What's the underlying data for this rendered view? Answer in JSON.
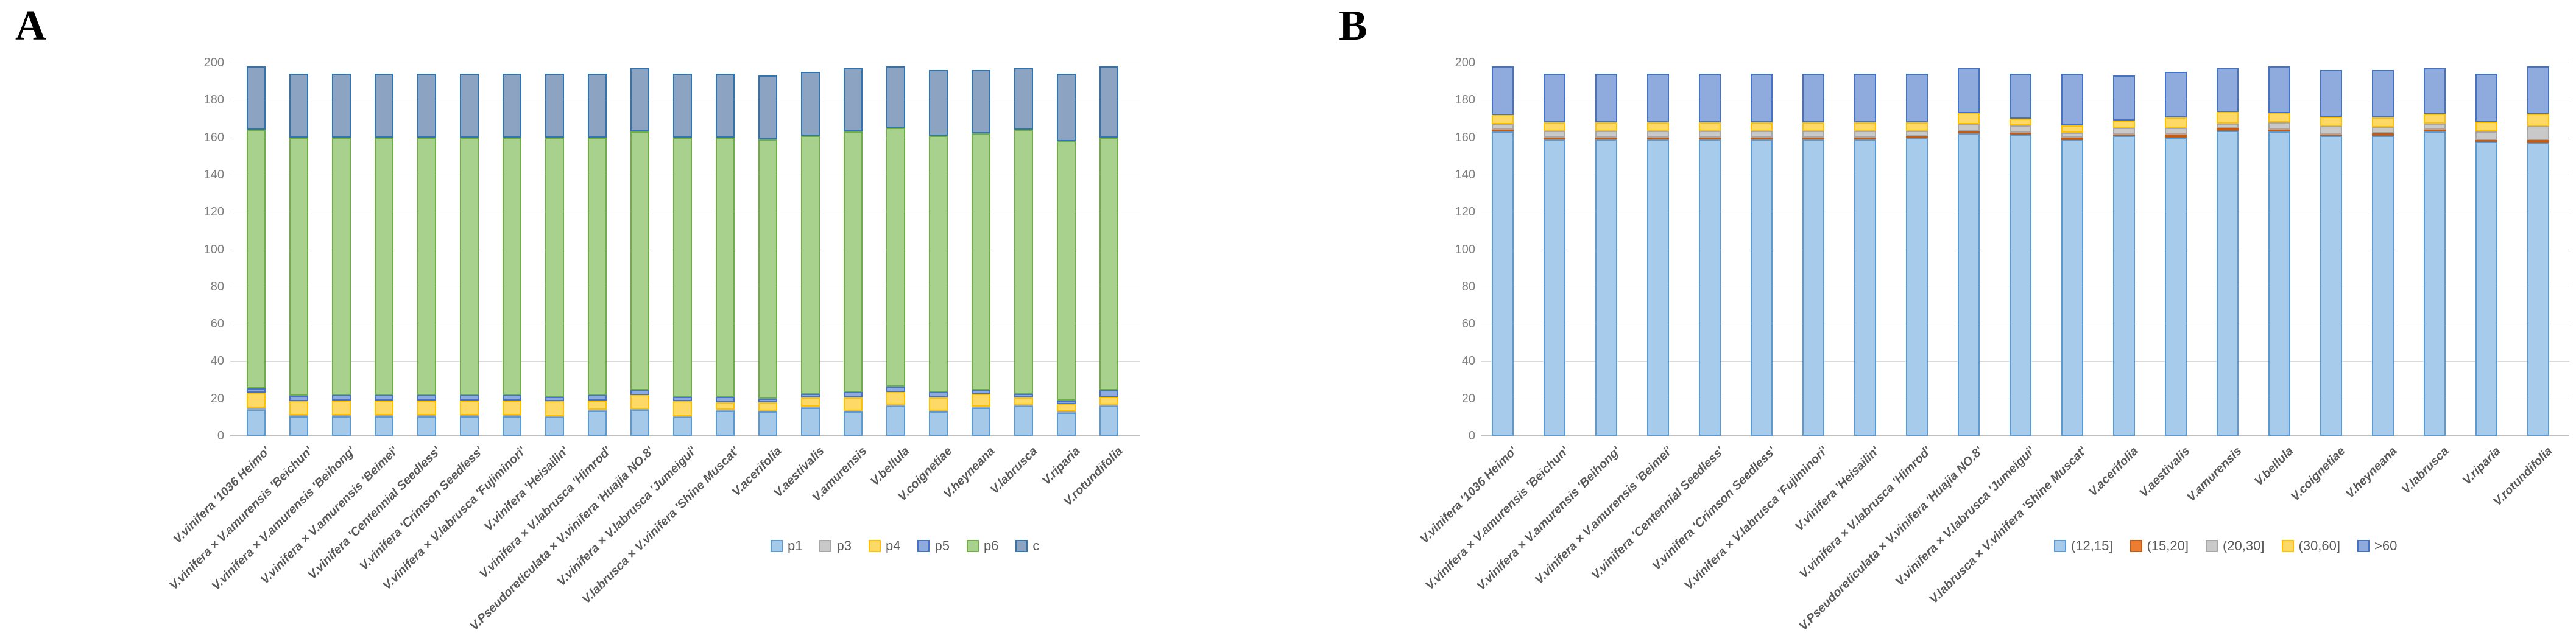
{
  "figure": {
    "panels": [
      {
        "letter": "A"
      },
      {
        "letter": "B"
      }
    ]
  },
  "axis": {
    "y_ticks": [
      0,
      20,
      40,
      60,
      80,
      100,
      120,
      140,
      160,
      180,
      200
    ],
    "ylim": [
      0,
      200
    ]
  },
  "chart_data": [
    {
      "type": "bar",
      "stacked": true,
      "title": "",
      "xlabel": "",
      "ylabel": "",
      "ylim": [
        0,
        200
      ],
      "ytick_step": 20,
      "grid": true,
      "legend_position": "bottom",
      "categories": [
        "V.vinifera '1036 Heimo'",
        "V.vinifera × V.amurensis 'Beichun'",
        "V.vinifera × V.amurensis 'Beihong'",
        "V.vinifera × V.amurensis 'Beimei'",
        "V.vinifera 'Centennial Seedless'",
        "V.vinifera 'Crimson Seedless'",
        "V.vinifera × V.labrusca 'Fujiminori'",
        "V.vinifera 'Heisailin'",
        "V.vinifera × V.labrusca 'Himrod'",
        "V.Pseudoreticulata × V.vinifera 'Huajia NO.8'",
        "V.vinifera × V.labrusca 'Jumeigui'",
        "V.labrusca × V.vinifera 'Shine Muscat'",
        "V.acerifolia",
        "V.aestivalis",
        "V.amurensis",
        "V.bellula",
        "V.coignetiae",
        "V.heyneana",
        "V.labrusca",
        "V.riparia",
        "V.rotundifolia"
      ],
      "series": [
        {
          "name": "p1",
          "fill": "#A4C9E9",
          "border": "#5B9BD5",
          "values": [
            14,
            10.5,
            10.5,
            10.5,
            10.5,
            10.5,
            10.5,
            10,
            13.5,
            14,
            10,
            13.5,
            13,
            15,
            13,
            16,
            13,
            15,
            16,
            12.5,
            16
          ]
        },
        {
          "name": "p3",
          "fill": "#C9C9C9",
          "border": "#A6A6A6",
          "values": [
            1,
            0.5,
            0.5,
            0.5,
            0.5,
            0.5,
            0.5,
            0.5,
            0.5,
            0.5,
            0.5,
            0.5,
            0.5,
            0.5,
            0.5,
            0.5,
            0.5,
            0.5,
            0.5,
            0.5,
            0.5
          ]
        },
        {
          "name": "p4",
          "fill": "#FFD966",
          "border": "#FFC000",
          "values": [
            8,
            7.5,
            8,
            8,
            8,
            8,
            8,
            8,
            5,
            7.5,
            8,
            4,
            4.5,
            5,
            7,
            7,
            7,
            7,
            4,
            4,
            4.5
          ]
        },
        {
          "name": "p5",
          "fill": "#8FAADC",
          "border": "#4472C4",
          "values": [
            2.5,
            3,
            3,
            3,
            3,
            3,
            3,
            2.5,
            3,
            2.5,
            2.5,
            3,
            2,
            2,
            3,
            3,
            3,
            2,
            2,
            2,
            3.5
          ]
        },
        {
          "name": "p6",
          "fill": "#A9D18E",
          "border": "#70AD47",
          "values": [
            138.5,
            138.5,
            138,
            138,
            138,
            138,
            138,
            139,
            138,
            138.5,
            139,
            139,
            139,
            138.5,
            139.5,
            138.5,
            137.5,
            137.5,
            141.5,
            139,
            135.5
          ]
        },
        {
          "name": "c",
          "fill": "#8DA3C2",
          "border": "#2E75B6",
          "values": [
            34,
            34,
            34,
            34,
            34,
            34,
            34,
            34,
            34,
            34,
            34,
            34,
            34,
            34,
            34,
            33,
            35,
            34,
            33,
            36,
            38
          ]
        }
      ]
    },
    {
      "type": "bar",
      "stacked": true,
      "title": "",
      "xlabel": "",
      "ylabel": "",
      "ylim": [
        0,
        200
      ],
      "ytick_step": 20,
      "grid": true,
      "legend_position": "bottom",
      "categories": [
        "V.vinifera '1036 Heimo'",
        "V.vinifera × V.amurensis 'Beichun'",
        "V.vinifera × V.amurensis 'Beihong'",
        "V.vinifera × V.amurensis 'Beimei'",
        "V.vinifera 'Centennial Seedless'",
        "V.vinifera 'Crimson Seedless'",
        "V.vinifera × V.labrusca 'Fujiminori'",
        "V.vinifera 'Heisailin'",
        "V.vinifera × V.labrusca 'Himrod'",
        "V.Pseudoreticulata × V.vinifera 'Huajia NO.8'",
        "V.vinifera × V.labrusca 'Jumeigui'",
        "V.labrusca × V.vinifera 'Shine Muscat'",
        "V.acerifolia",
        "V.aestivalis",
        "V.amurensis",
        "V.bellula",
        "V.coignetiae",
        "V.heyneana",
        "V.labrusca",
        "V.riparia",
        "V.rotundifolia"
      ],
      "series": [
        {
          "name": "(12,15]",
          "fill": "#A6CBEB",
          "border": "#5B9BD5",
          "values": [
            163,
            159,
            159,
            159,
            159,
            159,
            159,
            159,
            159.5,
            162,
            161.5,
            158.5,
            161,
            160,
            163.5,
            163,
            161,
            161,
            163,
            157.5,
            157
          ]
        },
        {
          "name": "(15,20]",
          "fill": "#ED7D31",
          "border": "#C55A11",
          "values": [
            1,
            1,
            1,
            1,
            1,
            1,
            1,
            1,
            1,
            1,
            1,
            1.5,
            0.5,
            1.5,
            1.5,
            1,
            0.5,
            1,
            1,
            1,
            1.5
          ]
        },
        {
          "name": "(20,30]",
          "fill": "#C9C9C9",
          "border": "#A6A6A6",
          "values": [
            3,
            3.5,
            3.5,
            3.5,
            3.5,
            3.5,
            3.5,
            3.5,
            3,
            4,
            4,
            2.5,
            3.5,
            3.5,
            2.5,
            4,
            4.5,
            3.5,
            3.5,
            4.5,
            7.5
          ]
        },
        {
          "name": "(30,60]",
          "fill": "#FFD966",
          "border": "#FFC000",
          "values": [
            5,
            4.5,
            4.5,
            4.5,
            4.5,
            4.5,
            4.5,
            4.5,
            4.5,
            6,
            3.5,
            4,
            4,
            5.5,
            6,
            5,
            5,
            5,
            5,
            5.5,
            6.5
          ]
        },
        {
          "name": ">60",
          "fill": "#8FAADC",
          "border": "#4472C4",
          "values": [
            26,
            26,
            26,
            26,
            26,
            26,
            26,
            26,
            26,
            24,
            24,
            27.5,
            24,
            24.5,
            23.5,
            25,
            25,
            25.5,
            24.5,
            25.5,
            25.5
          ]
        }
      ]
    }
  ]
}
